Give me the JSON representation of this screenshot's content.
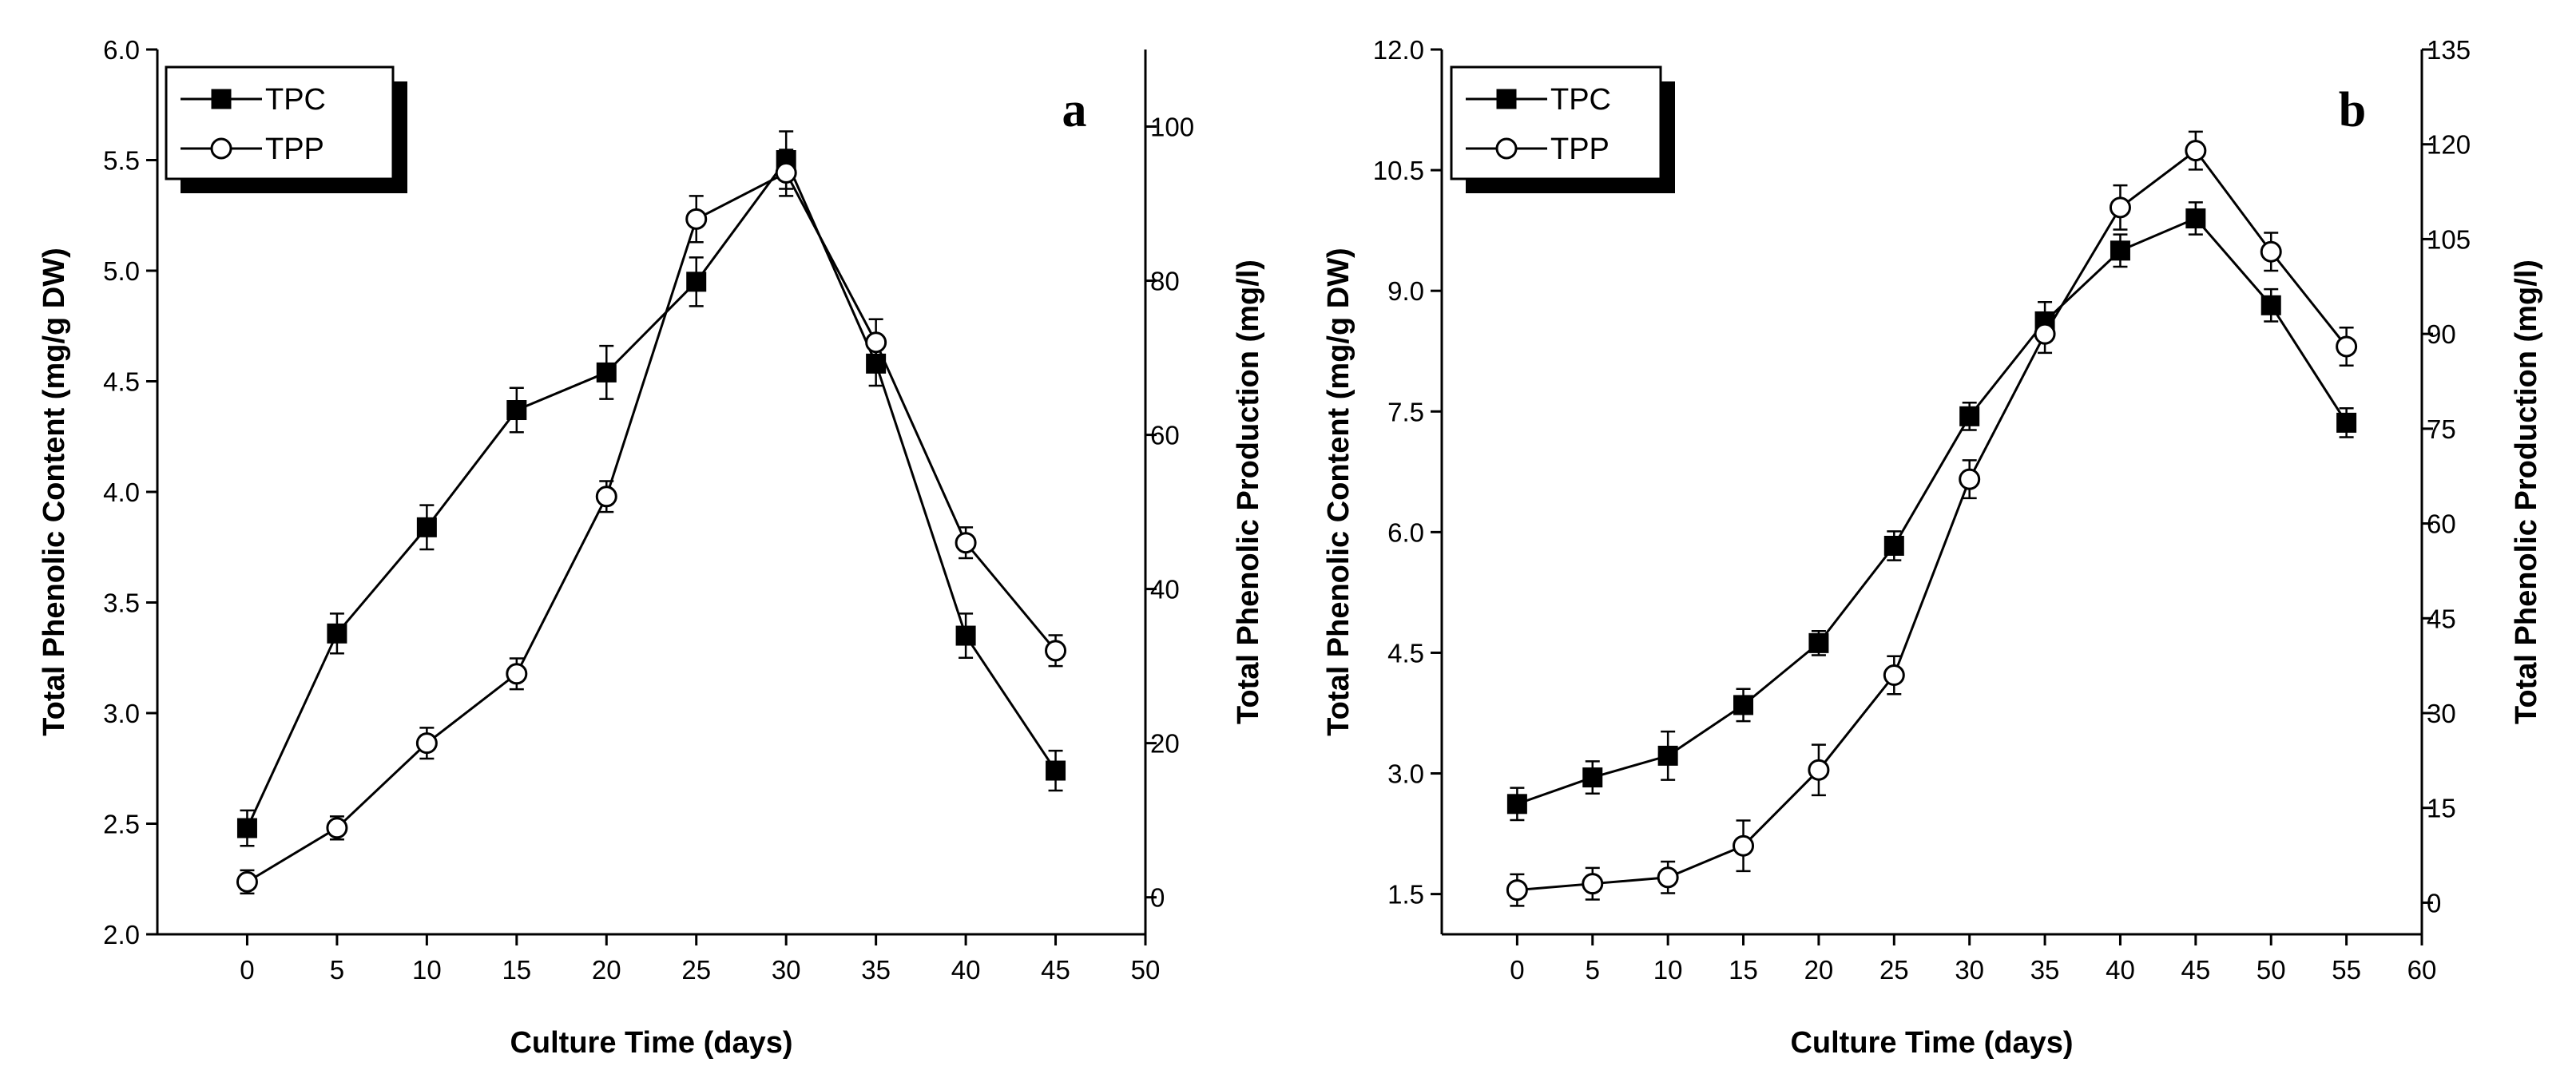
{
  "chart_data": [
    {
      "type": "line",
      "panel_label": "a",
      "xlabel": "Culture Time (days)",
      "ylabel": "Total Phenolic Content (mg/g DW)",
      "y2label": "Total Phenolic Production (mg/l)",
      "xlim": [
        -5,
        50
      ],
      "xticks": [
        0,
        5,
        10,
        15,
        20,
        25,
        30,
        35,
        40,
        45,
        50
      ],
      "ylim": [
        2.0,
        6.0
      ],
      "yticks": [
        "2.0",
        "2.5",
        "3.0",
        "3.5",
        "4.0",
        "4.5",
        "5.0",
        "5.5",
        "6.0"
      ],
      "y2lim": [
        -4.8,
        110
      ],
      "y2ticks": [
        0,
        20,
        40,
        60,
        80,
        100
      ],
      "legend_position": "top-left",
      "series": [
        {
          "name": "TPC",
          "axis": "left",
          "marker": "filled-square",
          "x": [
            0,
            5,
            10,
            15,
            20,
            25,
            30,
            35,
            40,
            45
          ],
          "y": [
            2.48,
            3.36,
            3.84,
            4.37,
            4.54,
            4.95,
            5.5,
            4.58,
            3.35,
            2.74
          ],
          "err": [
            0.08,
            0.09,
            0.1,
            0.1,
            0.12,
            0.11,
            0.13,
            0.1,
            0.1,
            0.09
          ]
        },
        {
          "name": "TPP",
          "axis": "right",
          "marker": "open-circle",
          "x": [
            0,
            5,
            10,
            15,
            20,
            25,
            30,
            35,
            40,
            45
          ],
          "y": [
            2,
            9,
            20,
            29,
            52,
            88,
            94,
            72,
            46,
            32
          ],
          "err": [
            1.5,
            1.5,
            2,
            2,
            2,
            3,
            3,
            3,
            2,
            2
          ]
        }
      ]
    },
    {
      "type": "line",
      "panel_label": "b",
      "xlabel": "Culture Time (days)",
      "ylabel": "Total Phenolic Content (mg/g DW)",
      "y2label": "Total Phenolic Production (mg/l)",
      "xlim": [
        -5,
        60
      ],
      "xticks": [
        0,
        5,
        10,
        15,
        20,
        25,
        30,
        35,
        40,
        45,
        50,
        55,
        60
      ],
      "ylim": [
        1.0,
        12.0
      ],
      "yticks": [
        "1.5",
        "3.0",
        "4.5",
        "6.0",
        "7.5",
        "9.0",
        "10.5",
        "12.0"
      ],
      "y2lim": [
        -5,
        135
      ],
      "y2ticks": [
        0,
        15,
        30,
        45,
        60,
        75,
        90,
        105,
        120,
        135
      ],
      "legend_position": "top-left",
      "series": [
        {
          "name": "TPC",
          "axis": "left",
          "marker": "filled-square",
          "x": [
            0,
            5,
            10,
            15,
            20,
            25,
            30,
            35,
            40,
            45,
            50,
            55
          ],
          "y": [
            2.62,
            2.95,
            3.22,
            3.85,
            4.62,
            5.83,
            7.44,
            8.62,
            9.5,
            9.9,
            8.82,
            7.36
          ],
          "err": [
            0.2,
            0.2,
            0.3,
            0.2,
            0.15,
            0.18,
            0.17,
            0.24,
            0.2,
            0.2,
            0.2,
            0.18
          ]
        },
        {
          "name": "TPP",
          "axis": "right",
          "marker": "open-circle",
          "x": [
            0,
            5,
            10,
            15,
            20,
            25,
            30,
            35,
            40,
            45,
            50,
            55
          ],
          "y": [
            2,
            3,
            4,
            9,
            21,
            36,
            67,
            90,
            110,
            119,
            103,
            88
          ],
          "err": [
            2.5,
            2.5,
            2.5,
            4,
            4,
            3,
            3,
            3,
            3.5,
            3,
            3,
            3
          ]
        }
      ]
    }
  ]
}
